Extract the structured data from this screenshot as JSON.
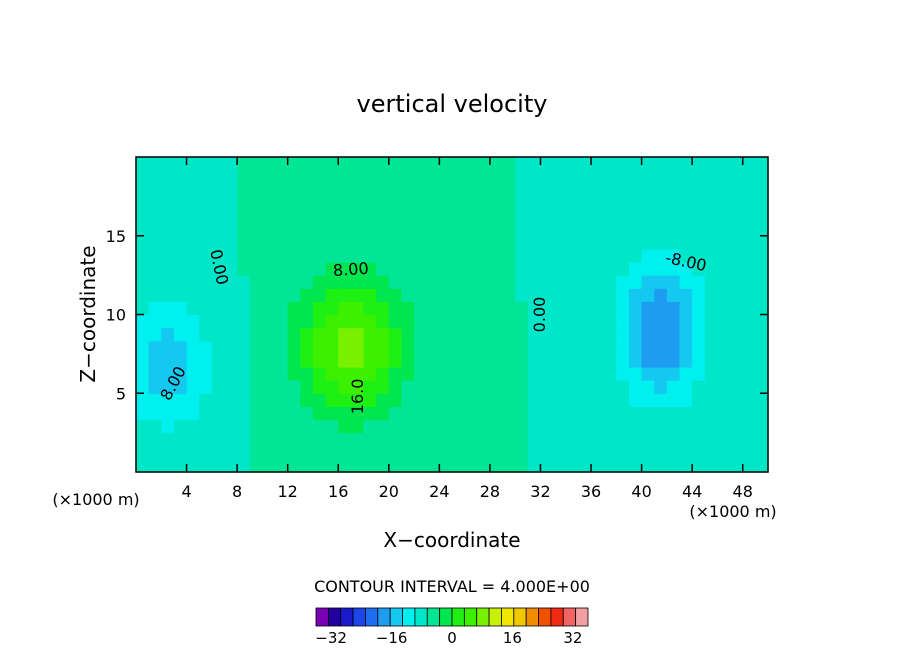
{
  "chart_data": {
    "type": "heatmap",
    "title": "vertical velocity",
    "xlabel": "X−coordinate",
    "ylabel": "Z−coordinate",
    "x_unit_note": "(×1000 m)",
    "z_unit_note": "(×1000 m)",
    "xlim": [
      0,
      50
    ],
    "ylim": [
      0,
      20
    ],
    "xticks": [
      4,
      8,
      12,
      16,
      20,
      24,
      28,
      32,
      36,
      40,
      44,
      48
    ],
    "yticks": [
      5,
      10,
      15
    ],
    "contour_interval_label": "CONTOUR INTERVAL = 4.000E+00",
    "contour_interval": 4.0,
    "contour_labels": [
      "0.00",
      "8.00",
      "16.0",
      "0.00",
      "-8.00",
      "8.00"
    ],
    "colorbar": {
      "min": -36,
      "max": 36,
      "step": 4,
      "tick_labels": [
        "−32",
        "−16",
        "0",
        "16",
        "32"
      ],
      "tick_values": [
        -32,
        -16,
        0,
        16,
        32
      ],
      "colors": [
        "#7a00b4",
        "#2200a0",
        "#1a1acc",
        "#1c46e8",
        "#1e6ef0",
        "#1e9cf0",
        "#14c8f0",
        "#00f0f0",
        "#00e6c8",
        "#00e696",
        "#00e650",
        "#1ef014",
        "#3cf000",
        "#78f000",
        "#c8f000",
        "#f0e600",
        "#f0c800",
        "#f08c00",
        "#f05000",
        "#f02814",
        "#f06464",
        "#f0a0a0"
      ]
    },
    "features": [
      {
        "kind": "updraft",
        "x_center": 17.0,
        "z_center": 8.0,
        "peak": 18
      },
      {
        "kind": "downdraft",
        "x_center": 41.5,
        "z_center": 9.0,
        "peak": -16
      },
      {
        "kind": "downdraft",
        "x_center": 2.5,
        "z_center": 7.0,
        "peak": -10
      }
    ]
  }
}
